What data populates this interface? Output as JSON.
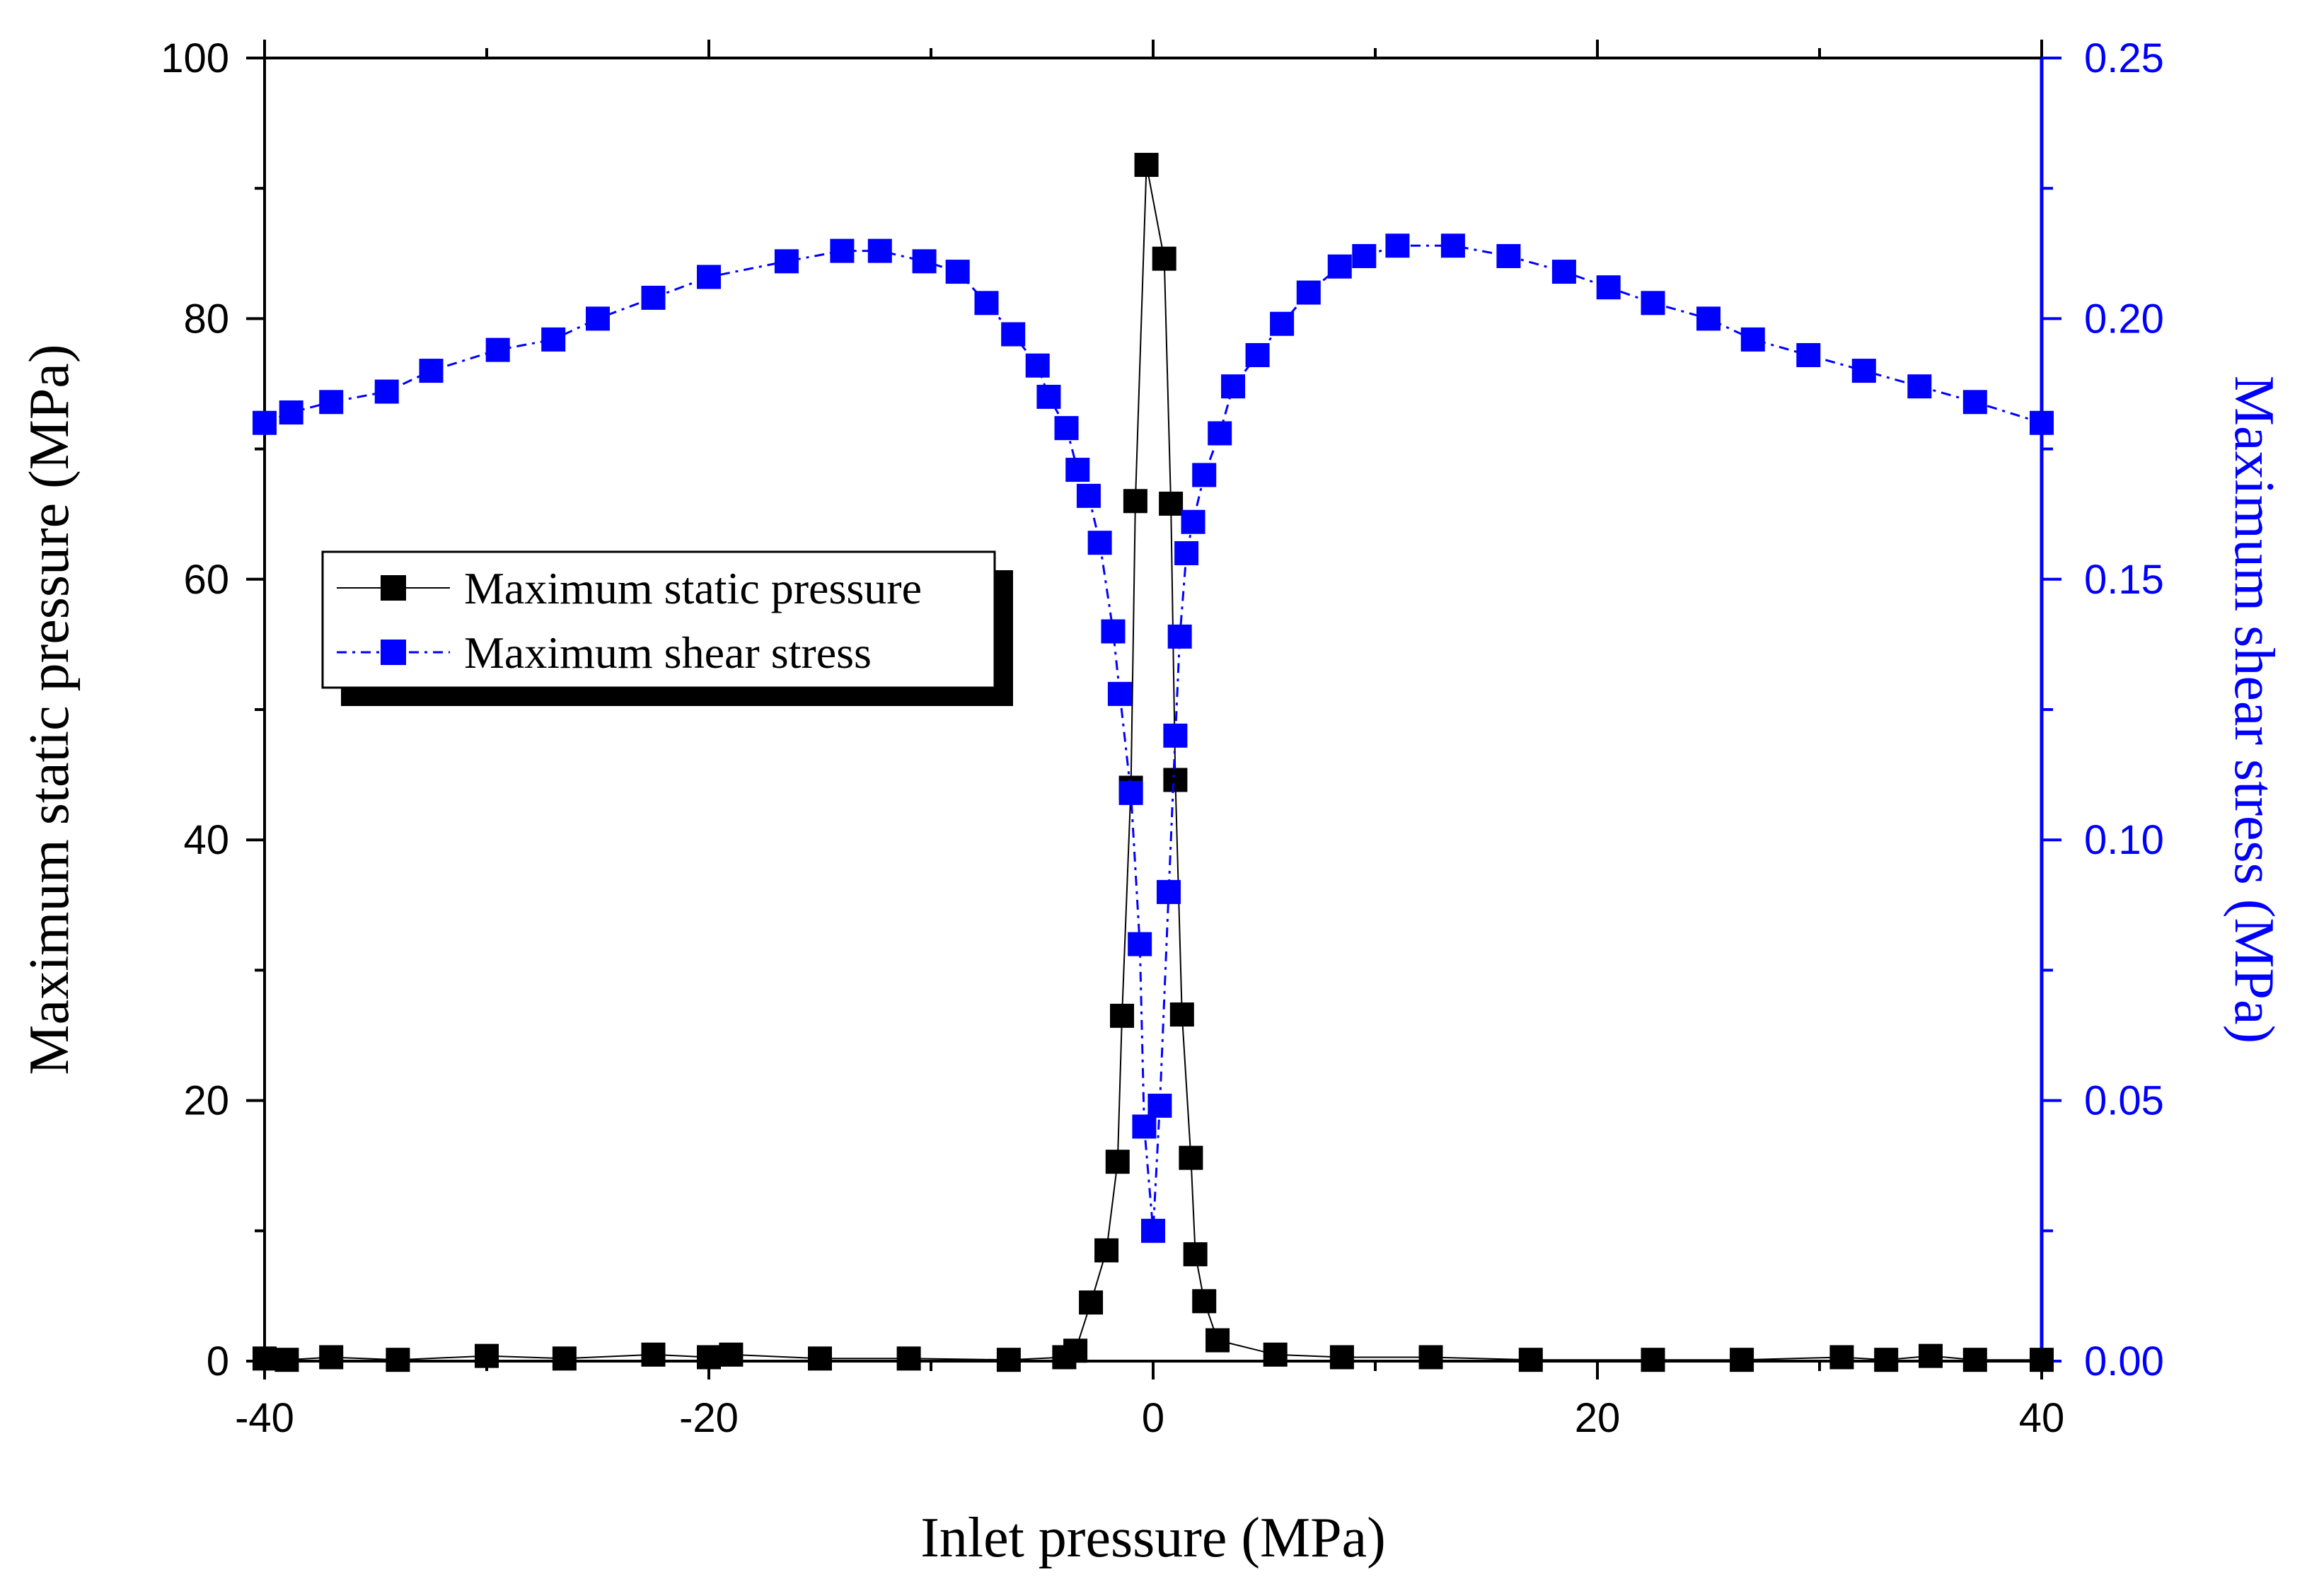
{
  "chart_data": {
    "type": "scatter",
    "title": "",
    "xlabel": "Inlet pressure (MPa)",
    "ylabel_left": "Maximum static pressure (MPa)",
    "ylabel_right": "Maximum shear stress (MPa)",
    "xlim": [
      -40,
      40
    ],
    "ylim_left": [
      0,
      100
    ],
    "ylim_right": [
      0,
      0.25
    ],
    "x_ticks": [
      -40,
      -20,
      0,
      20,
      40
    ],
    "x_tick_labels": [
      "-40",
      "-20",
      "0",
      "20",
      "40"
    ],
    "y_left_ticks": [
      0,
      20,
      40,
      60,
      80,
      100
    ],
    "y_left_tick_labels": [
      "0",
      "20",
      "40",
      "60",
      "80",
      "100"
    ],
    "y_right_ticks": [
      0,
      0.05,
      0.1,
      0.15,
      0.2,
      0.25
    ],
    "y_right_tick_labels": [
      "0.00",
      "0.05",
      "0.10",
      "0.15",
      "0.20",
      "0.25"
    ],
    "grid": false,
    "legend_position": "left-middle",
    "colors": {
      "static": "#000000",
      "shear": "#0000ff",
      "right_axis": "#0000ff",
      "frame": "#000000"
    },
    "series": [
      {
        "name": "Maximum static pressure",
        "axis": "left",
        "x": [
          -40,
          -39,
          -37,
          -34,
          -30,
          -26.5,
          -22.5,
          -20,
          -19,
          -15,
          -11,
          -6.5,
          -4,
          -3.5,
          -2.8,
          -2.1,
          -1.6,
          -1.4,
          -1.0,
          -0.8,
          -0.3,
          0.5,
          0.8,
          1.0,
          1.3,
          1.7,
          1.9,
          2.3,
          2.9,
          5.5,
          8.5,
          12.5,
          17,
          22.5,
          26.5,
          31,
          33,
          35,
          37,
          40
        ],
        "y": [
          0.2,
          0.1,
          0.3,
          0.1,
          0.4,
          0.2,
          0.5,
          0.3,
          0.5,
          0.2,
          0.2,
          0.1,
          0.3,
          0.8,
          4.5,
          8.5,
          15.3,
          26.5,
          44,
          66,
          91.8,
          84.6,
          65.8,
          44.6,
          26.6,
          15.6,
          8.2,
          4.6,
          1.6,
          0.5,
          0.3,
          0.3,
          0.1,
          0.1,
          0.1,
          0.3,
          0.1,
          0.4,
          0.1,
          0.1
        ]
      },
      {
        "name": "Maximum shear stress",
        "axis": "right",
        "x": [
          -40,
          -38.8,
          -37,
          -34.5,
          -32.5,
          -29.5,
          -27,
          -25,
          -22.5,
          -20,
          -16.5,
          -14,
          -12.3,
          -10.3,
          -8.8,
          -7.5,
          -6.3,
          -5.2,
          -4.7,
          -3.9,
          -3.4,
          -2.9,
          -2.4,
          -1.8,
          -1.5,
          -1.0,
          -0.6,
          -0.4,
          0,
          0.3,
          0.7,
          1.0,
          1.2,
          1.5,
          1.8,
          2.3,
          3.0,
          3.6,
          4.7,
          5.8,
          7.0,
          8.4,
          9.5,
          11.0,
          13.5,
          16.0,
          18.5,
          20.5,
          22.5,
          25.0,
          27.0,
          29.5,
          32.0,
          34.5,
          37.0,
          40.0
        ],
        "y": [
          0.18,
          0.182,
          0.184,
          0.186,
          0.19,
          0.194,
          0.196,
          0.2,
          0.204,
          0.208,
          0.211,
          0.213,
          0.213,
          0.211,
          0.209,
          0.203,
          0.197,
          0.191,
          0.185,
          0.179,
          0.171,
          0.166,
          0.157,
          0.14,
          0.128,
          0.109,
          0.08,
          0.045,
          0.025,
          0.049,
          0.09,
          0.12,
          0.139,
          0.155,
          0.161,
          0.17,
          0.178,
          0.187,
          0.193,
          0.199,
          0.205,
          0.21,
          0.212,
          0.214,
          0.214,
          0.212,
          0.209,
          0.206,
          0.203,
          0.2,
          0.196,
          0.193,
          0.19,
          0.187,
          0.184,
          0.18
        ]
      }
    ]
  }
}
